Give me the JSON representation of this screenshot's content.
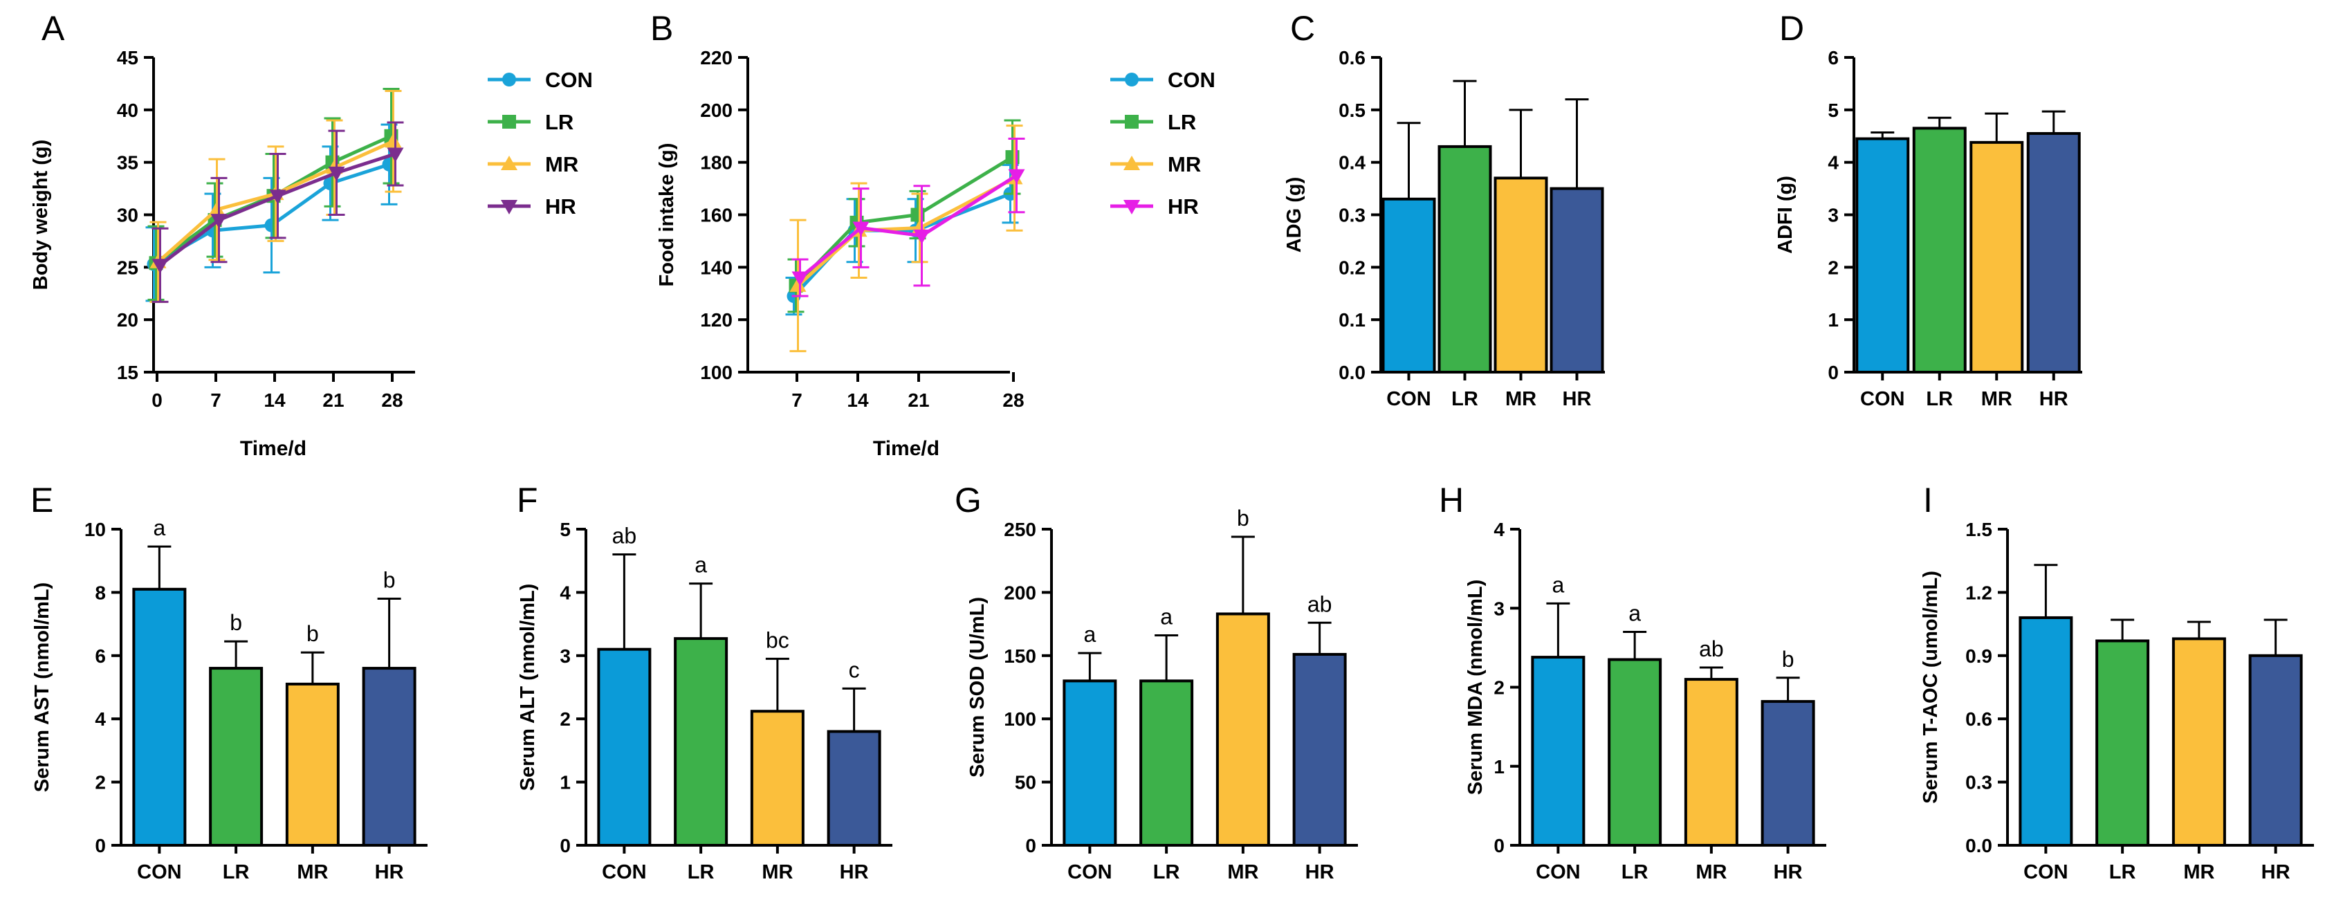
{
  "figure": {
    "background": "#ffffff"
  },
  "colors": {
    "CON": "#0b9bd8",
    "LR": "#3db14a",
    "MR": "#fbbf3c",
    "HR": "#3b5998",
    "HR_line": "#7b2d8e"
  },
  "chart_data": [
    {
      "id": "A",
      "panel": "A",
      "type": "line",
      "title": "",
      "xlabel": "Time/d",
      "ylabel": "Body weight (g)",
      "x": [
        0,
        7,
        14,
        21,
        28
      ],
      "ylim": [
        15,
        45
      ],
      "yticks": [
        15,
        20,
        25,
        30,
        35,
        40,
        45
      ],
      "grid": false,
      "legend": "right",
      "series": [
        {
          "name": "CON",
          "marker": "circle",
          "color": "#1aa3d9",
          "values": [
            25.3,
            28.5,
            29.0,
            33.0,
            34.8
          ],
          "errors": [
            3.5,
            3.5,
            4.5,
            3.5,
            3.8
          ]
        },
        {
          "name": "LR",
          "marker": "square",
          "color": "#3db14a",
          "values": [
            25.4,
            29.5,
            31.8,
            35.0,
            37.5
          ],
          "errors": [
            3.5,
            3.5,
            4.0,
            4.2,
            4.5
          ]
        },
        {
          "name": "MR",
          "marker": "triangle-up",
          "color": "#fbbf3c",
          "values": [
            25.5,
            30.5,
            32.0,
            34.5,
            37.0
          ],
          "errors": [
            3.8,
            4.8,
            4.5,
            4.5,
            4.8
          ]
        },
        {
          "name": "HR",
          "marker": "triangle-down",
          "color": "#7b2d8e",
          "values": [
            25.2,
            29.5,
            31.8,
            34.0,
            35.8
          ],
          "errors": [
            3.5,
            4.0,
            4.0,
            4.0,
            3.0
          ]
        }
      ]
    },
    {
      "id": "B",
      "panel": "B",
      "type": "line",
      "title": "",
      "xlabel": "Time/d",
      "ylabel": "Food intake (g)",
      "x": [
        7,
        14,
        21,
        28
      ],
      "ylim": [
        100,
        220
      ],
      "yticks": [
        100,
        120,
        140,
        160,
        180,
        200,
        220
      ],
      "grid": false,
      "legend": "right",
      "series": [
        {
          "name": "CON",
          "marker": "circle",
          "color": "#1aa3d9",
          "values": [
            129,
            154,
            154,
            168
          ],
          "errors": [
            7,
            12,
            12,
            11
          ]
        },
        {
          "name": "LR",
          "marker": "square",
          "color": "#3db14a",
          "values": [
            133,
            157,
            160,
            182
          ],
          "errors": [
            10,
            9,
            9,
            14
          ]
        },
        {
          "name": "MR",
          "marker": "triangle-up",
          "color": "#fbbf3c",
          "values": [
            133,
            154,
            155,
            174
          ],
          "errors": [
            25,
            18,
            13,
            20
          ]
        },
        {
          "name": "HR",
          "marker": "triangle-down",
          "color": "#e61ee6",
          "values": [
            136,
            155,
            152,
            175
          ],
          "errors": [
            7,
            15,
            19,
            14
          ]
        }
      ]
    },
    {
      "id": "C",
      "panel": "C",
      "type": "bar",
      "ylabel": "ADG (g)",
      "categories": [
        "CON",
        "LR",
        "MR",
        "HR"
      ],
      "values": [
        0.33,
        0.43,
        0.37,
        0.35
      ],
      "errors": [
        0.145,
        0.125,
        0.13,
        0.17
      ],
      "ylim": [
        0,
        0.6
      ],
      "yticks": [
        "0.0",
        "0.1",
        "0.2",
        "0.3",
        "0.4",
        "0.5",
        "0.6"
      ],
      "letters": []
    },
    {
      "id": "D",
      "panel": "D",
      "type": "bar",
      "ylabel": "ADFI (g)",
      "categories": [
        "CON",
        "LR",
        "MR",
        "HR"
      ],
      "values": [
        4.45,
        4.65,
        4.38,
        4.55
      ],
      "errors": [
        0.12,
        0.2,
        0.55,
        0.42
      ],
      "ylim": [
        0,
        6
      ],
      "yticks": [
        "0",
        "1",
        "2",
        "3",
        "4",
        "5",
        "6"
      ],
      "letters": []
    },
    {
      "id": "E",
      "panel": "E",
      "type": "bar",
      "ylabel": "Serum AST (nmol/mL)",
      "categories": [
        "CON",
        "LR",
        "MR",
        "HR"
      ],
      "values": [
        8.1,
        5.6,
        5.1,
        5.6
      ],
      "errors": [
        1.35,
        0.85,
        1.0,
        2.2
      ],
      "ylim": [
        0,
        10
      ],
      "yticks": [
        "0",
        "2",
        "4",
        "6",
        "8",
        "10"
      ],
      "letters": [
        "a",
        "b",
        "b",
        "b"
      ]
    },
    {
      "id": "F",
      "panel": "F",
      "type": "bar",
      "ylabel": "Serum ALT (nmol/mL)",
      "categories": [
        "CON",
        "LR",
        "MR",
        "HR"
      ],
      "values": [
        3.1,
        3.27,
        2.12,
        1.8
      ],
      "errors": [
        1.5,
        0.87,
        0.83,
        0.68
      ],
      "ylim": [
        0,
        5
      ],
      "yticks": [
        "0",
        "1",
        "2",
        "3",
        "4",
        "5"
      ],
      "letters": [
        "ab",
        "a",
        "bc",
        "c"
      ]
    },
    {
      "id": "G",
      "panel": "G",
      "type": "bar",
      "ylabel": "Serum SOD (U/mL)",
      "categories": [
        "CON",
        "LR",
        "MR",
        "HR"
      ],
      "values": [
        130,
        130,
        183,
        151
      ],
      "errors": [
        22,
        36,
        61,
        25
      ],
      "ylim": [
        0,
        250
      ],
      "yticks": [
        "0",
        "50",
        "100",
        "150",
        "200",
        "250"
      ],
      "letters": [
        "a",
        "a",
        "b",
        "ab"
      ]
    },
    {
      "id": "H",
      "panel": "H",
      "type": "bar",
      "ylabel": "Serum MDA (nmol/mL)",
      "categories": [
        "CON",
        "LR",
        "MR",
        "HR"
      ],
      "values": [
        2.38,
        2.35,
        2.1,
        1.82
      ],
      "errors": [
        0.68,
        0.35,
        0.15,
        0.3
      ],
      "ylim": [
        0,
        4
      ],
      "yticks": [
        "0",
        "1",
        "2",
        "3",
        "4"
      ],
      "letters": [
        "a",
        "a",
        "ab",
        "b"
      ]
    },
    {
      "id": "I",
      "panel": "I",
      "type": "bar",
      "ylabel": "Serum T-AOC (umol/mL)",
      "categories": [
        "CON",
        "LR",
        "MR",
        "HR"
      ],
      "values": [
        1.08,
        0.97,
        0.98,
        0.9
      ],
      "errors": [
        0.25,
        0.1,
        0.08,
        0.17
      ],
      "ylim": [
        0,
        1.5
      ],
      "yticks": [
        "0.0",
        "0.3",
        "0.6",
        "0.9",
        "1.2",
        "1.5"
      ],
      "letters": []
    }
  ]
}
